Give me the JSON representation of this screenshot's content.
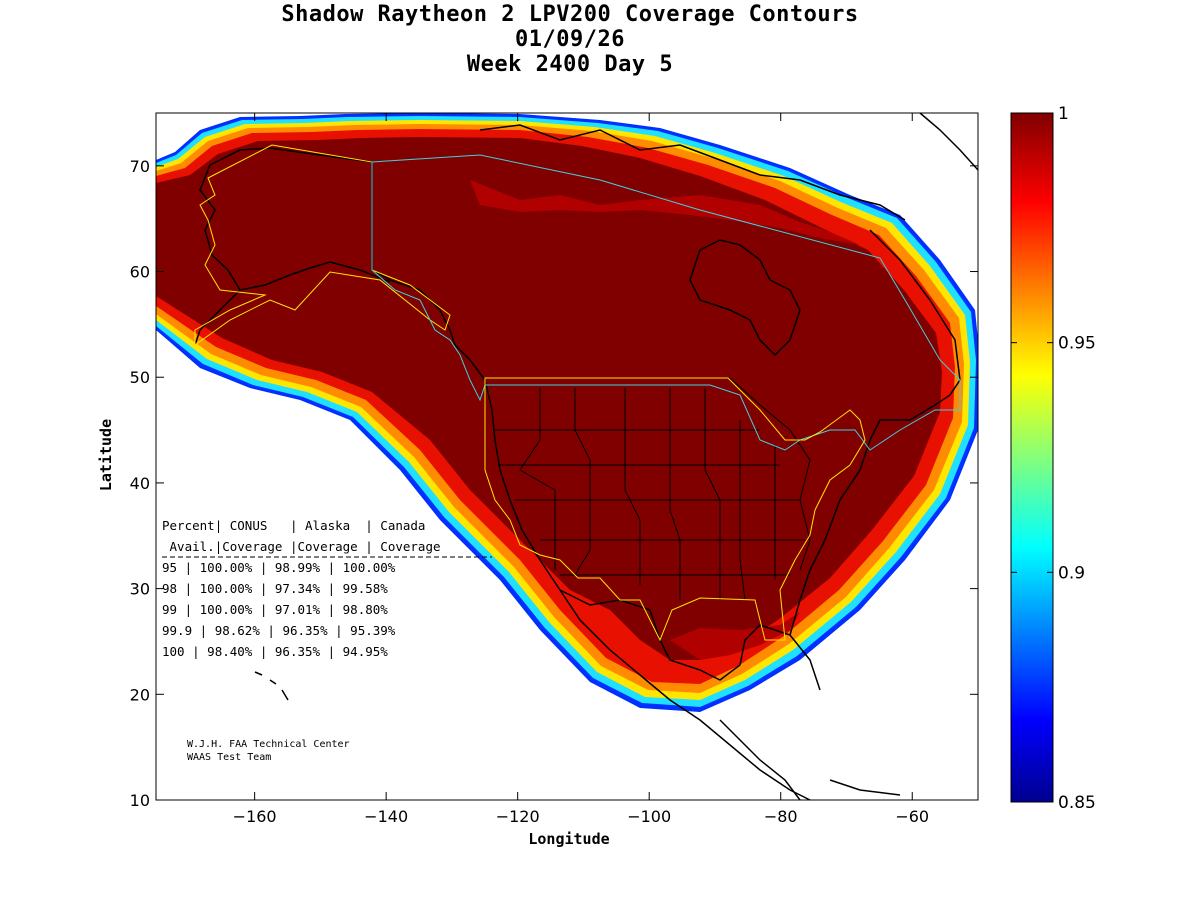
{
  "title": {
    "line1": "Shadow Raytheon 2 LPV200 Coverage Contours",
    "line2": "01/09/26",
    "line3": "Week 2400 Day 5"
  },
  "chart_data": {
    "type": "heatmap",
    "title": "Shadow Raytheon 2 LPV200 Coverage Contours",
    "xlabel": "Longitude",
    "ylabel": "Latitude",
    "xlim": [
      -175,
      -50
    ],
    "ylim": [
      10,
      75
    ],
    "xticks": [
      -160,
      -140,
      -120,
      -100,
      -80,
      -60
    ],
    "xtick_labels": [
      "−160",
      "−140",
      "−120",
      "−100",
      "−80",
      "−60"
    ],
    "yticks": [
      10,
      20,
      30,
      40,
      50,
      60,
      70
    ],
    "ytick_labels": [
      "10",
      "20",
      "30",
      "40",
      "50",
      "60",
      "70"
    ],
    "colorbar": {
      "min": 0.85,
      "max": 1,
      "ticks": [
        0.85,
        0.9,
        0.95,
        1
      ],
      "tick_labels": [
        "0.85",
        "0.9",
        "0.95",
        "1"
      ],
      "colormap": "jet"
    },
    "coverage_table": {
      "header1": [
        "Percent",
        "CONUS",
        "Alaska",
        "Canada"
      ],
      "header2": [
        "Avail.",
        "Coverage",
        "Coverage",
        "Coverage"
      ],
      "rows": [
        [
          "95",
          "100.00%",
          "98.99%",
          "100.00%"
        ],
        [
          "98",
          "100.00%",
          "97.34%",
          "99.58%"
        ],
        [
          "99",
          "100.00%",
          "97.01%",
          "98.80%"
        ],
        [
          "99.9",
          "98.62%",
          "96.35%",
          "95.39%"
        ],
        [
          "100",
          "98.40%",
          "96.35%",
          "94.95%"
        ]
      ]
    },
    "credit": [
      "W.J.H. FAA Technical Center",
      "WAAS Test Team"
    ]
  },
  "colors": {
    "dark_red": "#800000",
    "red": "#e81000",
    "orange": "#ff8c00",
    "yellow": "#ffe600",
    "cyan": "#20e0ff",
    "blue": "#0040ff",
    "dark_blue": "#00008f",
    "boundary_conus": "#ffe600",
    "boundary_alaska": "#ffe600",
    "boundary_canada": "#40d0e0"
  }
}
